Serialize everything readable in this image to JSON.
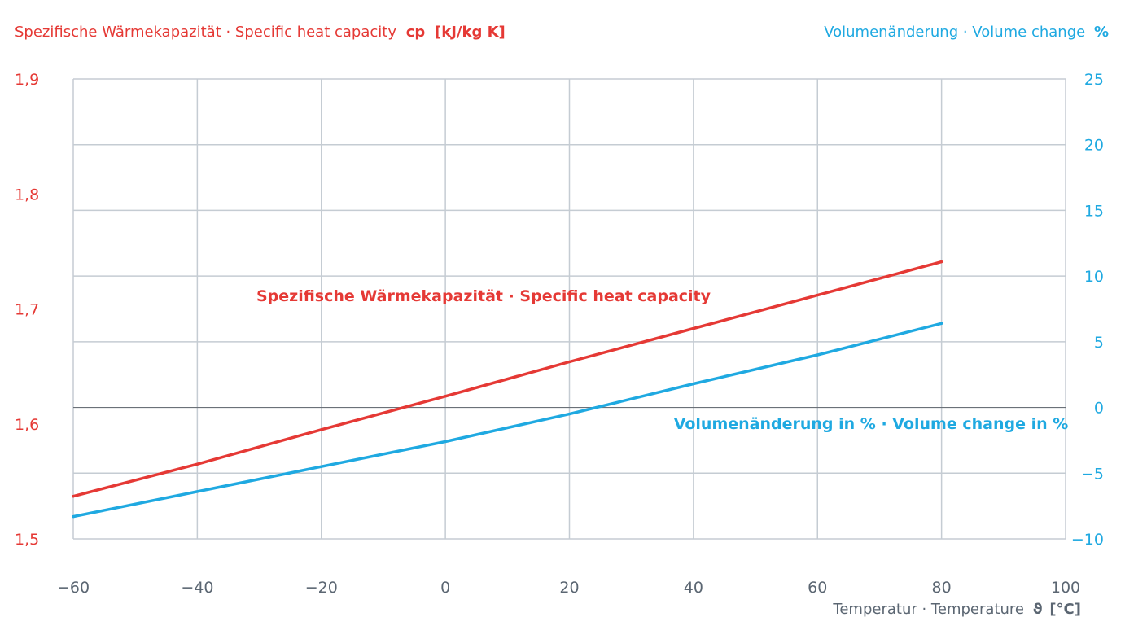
{
  "chart_data": {
    "type": "line",
    "left_axis_title": {
      "text": "Spezifische Wärmekapazität · Specific heat capacity",
      "symbol": "cp",
      "unit": "[kJ/kg K]"
    },
    "right_axis_title": {
      "text": "Volumenänderung · Volume change",
      "unit": "%"
    },
    "x_axis_title": {
      "text": "Temperatur · Temperature",
      "symbol": "ϑ",
      "unit": "[°C]"
    },
    "x_ticks": [
      "−60",
      "−40",
      "−20",
      "0",
      "20",
      "40",
      "60",
      "80",
      "100"
    ],
    "x_tick_values": [
      -60,
      -40,
      -20,
      0,
      20,
      40,
      60,
      80,
      100
    ],
    "xlim": [
      -60,
      100
    ],
    "left_ticks": [
      "1,9",
      "1,8",
      "1,7",
      "1,6",
      "1,5"
    ],
    "left_tick_values": [
      1.9,
      1.8,
      1.7,
      1.6,
      1.5
    ],
    "left_ylim": [
      1.5,
      1.9
    ],
    "right_ticks": [
      "25",
      "20",
      "15",
      "10",
      "5",
      "0",
      "−5",
      "−10"
    ],
    "right_tick_values": [
      25,
      20,
      15,
      10,
      5,
      0,
      -5,
      -10
    ],
    "right_ylim": [
      -10,
      25
    ],
    "grid": true,
    "series": [
      {
        "name": "Spezifische Wärmekapazität · Specific heat capacity",
        "axis": "left",
        "color": "#e53935",
        "x": [
          -60,
          -40,
          -20,
          0,
          20,
          40,
          60,
          80
        ],
        "y": [
          1.537,
          1.565,
          1.595,
          1.624,
          1.654,
          1.683,
          1.712,
          1.741
        ]
      },
      {
        "name": "Volumenänderung in % · Volume change in %",
        "axis": "right",
        "color": "#1fa9e1",
        "x": [
          -60,
          -40,
          -20,
          0,
          20,
          40,
          60,
          80
        ],
        "y": [
          -8.3,
          -6.4,
          -4.5,
          -2.6,
          -0.5,
          1.8,
          4.0,
          6.4
        ]
      }
    ],
    "colors": {
      "left": "#e53935",
      "right": "#1fa9e1",
      "grid": "#c5ccd3",
      "zero_line": "#6b7178",
      "axis_text": "#5b6672"
    }
  }
}
